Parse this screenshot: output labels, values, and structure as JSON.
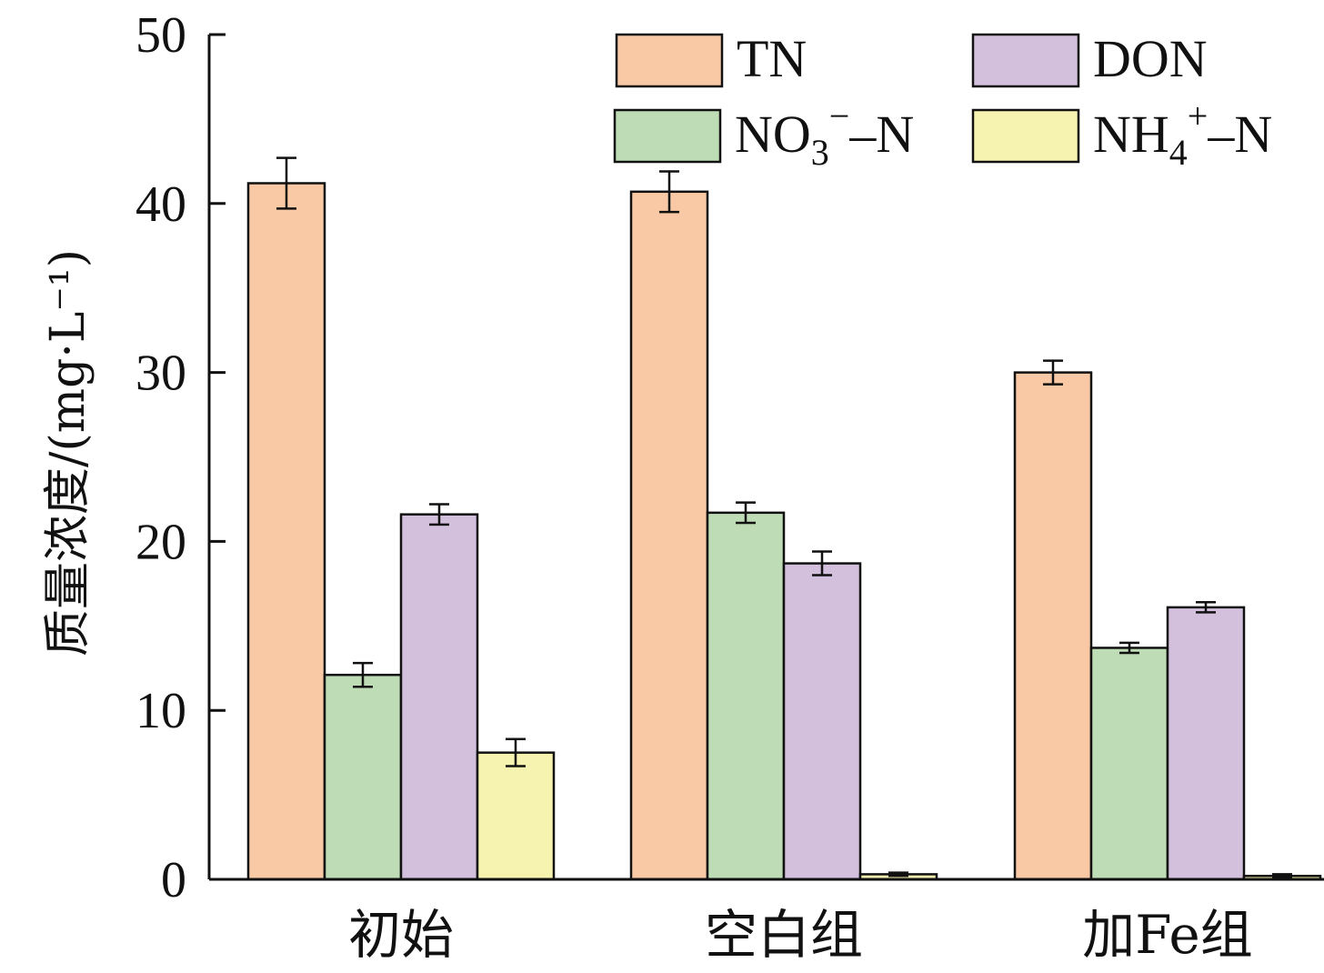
{
  "chart_data": {
    "type": "bar",
    "ylabel": "质量浓度/(mg·L⁻¹)",
    "ylim": [
      0,
      50
    ],
    "yticks": [
      0,
      10,
      20,
      30,
      40,
      50
    ],
    "categories": [
      "初始",
      "空白组",
      "加Fe组"
    ],
    "series": [
      {
        "name": "TN",
        "color": "#f9c9a5",
        "values": [
          41.2,
          40.7,
          30.0
        ],
        "errors": [
          1.5,
          1.2,
          0.7
        ]
      },
      {
        "name": "NO3−–N",
        "color": "#bedcb6",
        "values": [
          12.1,
          21.7,
          13.7
        ],
        "errors": [
          0.7,
          0.6,
          0.3
        ]
      },
      {
        "name": "DON",
        "color": "#d3c0dc",
        "values": [
          21.6,
          18.7,
          16.1
        ],
        "errors": [
          0.6,
          0.7,
          0.3
        ]
      },
      {
        "name": "NH4+–N",
        "color": "#f6f2af",
        "values": [
          7.5,
          0.3,
          0.2
        ],
        "errors": [
          0.8,
          0.1,
          0.1
        ]
      }
    ],
    "legend": {
      "placement": "top-right",
      "items": [
        {
          "base": "TN",
          "sub": "",
          "sup": "",
          "tail": "",
          "color": "#f9c9a5"
        },
        {
          "base": "DON",
          "sub": "",
          "sup": "",
          "tail": "",
          "color": "#d3c0dc"
        },
        {
          "base": "NO",
          "sub": "3",
          "sup": "−",
          "tail": "–N",
          "color": "#bedcb6"
        },
        {
          "base": "NH",
          "sub": "4",
          "sup": "+",
          "tail": "–N",
          "color": "#f6f2af"
        }
      ]
    },
    "grid": false
  }
}
